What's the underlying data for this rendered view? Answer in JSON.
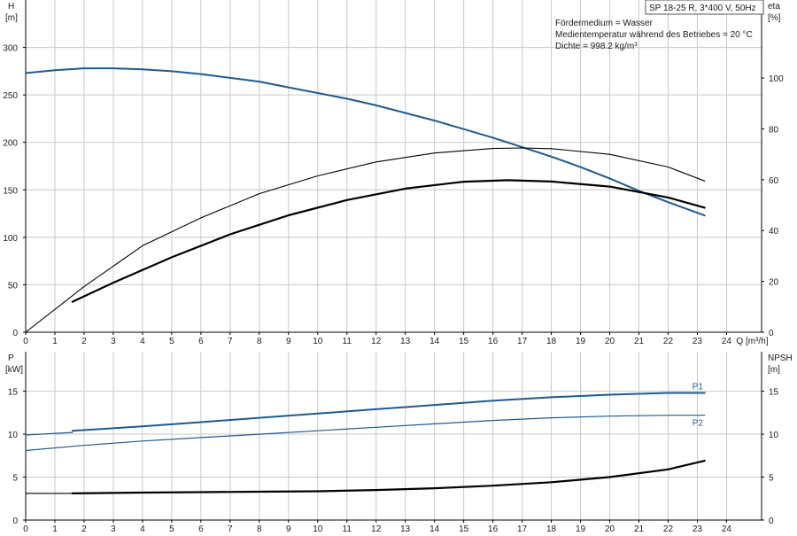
{
  "pump_title": "SP 18-25 R, 3*400 V, 50Hz",
  "medium_info": [
    "Fördermedium = Wasser",
    "Medientemperatur während des Betriebes = 20 °C",
    "Dichte = 998.2 kg/m³"
  ],
  "colors": {
    "series_blue": "#1f5a8f",
    "series_black": "#000000",
    "grid": "#c8c8c8"
  },
  "chart_data": [
    {
      "type": "line",
      "xlabel": "Q [m³/h]",
      "x_ticks": [
        0,
        1,
        2,
        3,
        4,
        5,
        6,
        7,
        8,
        9,
        10,
        11,
        12,
        13,
        14,
        15,
        16,
        17,
        18,
        19,
        20,
        21,
        22,
        23,
        24
      ],
      "xlim": [
        0,
        25.2
      ],
      "left_axis": {
        "name": "H",
        "unit": "[m]",
        "ylim": [
          0,
          350
        ],
        "ticks": [
          0,
          50,
          100,
          150,
          200,
          250,
          300
        ]
      },
      "right_axis": {
        "name": "eta",
        "unit": "[%]",
        "ylim": [
          0,
          130.7
        ],
        "ticks": [
          0,
          20,
          40,
          60,
          80,
          100
        ]
      },
      "grid": true,
      "series": [
        {
          "axis": "left",
          "style": "blue",
          "points": [
            [
              0,
              273
            ],
            [
              1,
              276
            ],
            [
              2,
              278
            ],
            [
              3,
              278
            ],
            [
              4,
              277
            ],
            [
              5,
              275
            ],
            [
              6,
              272
            ],
            [
              7,
              268
            ],
            [
              8,
              264
            ],
            [
              9,
              258
            ],
            [
              10,
              252
            ],
            [
              11,
              246
            ],
            [
              12,
              239
            ],
            [
              13,
              231
            ],
            [
              14,
              223
            ],
            [
              15,
              214
            ],
            [
              16,
              205
            ],
            [
              17,
              195
            ],
            [
              18,
              185
            ],
            [
              19,
              174
            ],
            [
              20,
              162
            ],
            [
              21,
              149
            ],
            [
              22,
              137
            ],
            [
              23.25,
              123
            ]
          ]
        },
        {
          "axis": "right",
          "style": "thin",
          "points": [
            [
              0,
              0
            ],
            [
              2,
              18
            ],
            [
              4,
              34
            ],
            [
              6,
              45
            ],
            [
              8,
              54.5
            ],
            [
              10,
              61.5
            ],
            [
              12,
              67
            ],
            [
              14,
              70.5
            ],
            [
              16,
              72.3
            ],
            [
              17,
              72.5
            ],
            [
              18,
              72.2
            ],
            [
              20,
              70
            ],
            [
              22,
              65
            ],
            [
              23.25,
              59.5
            ]
          ]
        },
        {
          "axis": "right",
          "style": "thick",
          "points": [
            [
              1.6,
              12
            ],
            [
              3,
              19.5
            ],
            [
              5,
              29.5
            ],
            [
              7,
              38.5
            ],
            [
              9,
              46
            ],
            [
              11,
              52
            ],
            [
              13,
              56.5
            ],
            [
              15,
              59.2
            ],
            [
              16.5,
              59.8
            ],
            [
              18,
              59.3
            ],
            [
              20,
              57.3
            ],
            [
              22,
              53
            ],
            [
              23.25,
              49
            ]
          ]
        }
      ]
    },
    {
      "type": "line",
      "x_ticks": [
        0,
        1,
        2,
        3,
        4,
        5,
        6,
        7,
        8,
        9,
        10,
        11,
        12,
        13,
        14,
        15,
        16,
        17,
        18,
        19,
        20,
        21,
        22,
        23,
        24
      ],
      "xlim": [
        0,
        25.2
      ],
      "left_axis": {
        "name": "P",
        "unit": "[kW]",
        "ylim": [
          0,
          19.6
        ],
        "ticks": [
          0,
          5,
          10,
          15
        ]
      },
      "right_axis": {
        "name": "NPSH",
        "unit": "[m]",
        "ylim": [
          0,
          19.6
        ],
        "ticks": [
          0,
          5,
          10,
          15
        ]
      },
      "grid": true,
      "series": [
        {
          "name": "P1",
          "axis": "left",
          "style": "blue",
          "points": [
            [
              1.6,
              10.4
            ],
            [
              4,
              10.9
            ],
            [
              6,
              11.4
            ],
            [
              8,
              11.9
            ],
            [
              10,
              12.4
            ],
            [
              12,
              12.9
            ],
            [
              14,
              13.4
            ],
            [
              16,
              13.9
            ],
            [
              18,
              14.3
            ],
            [
              20,
              14.6
            ],
            [
              22,
              14.8
            ],
            [
              23.25,
              14.8
            ]
          ]
        },
        {
          "name": "P2",
          "axis": "left",
          "style": "blue-thin",
          "points": [
            [
              0,
              8.1
            ],
            [
              2,
              8.7
            ],
            [
              4,
              9.2
            ],
            [
              6,
              9.6
            ],
            [
              8,
              10.0
            ],
            [
              10,
              10.4
            ],
            [
              12,
              10.8
            ],
            [
              14,
              11.2
            ],
            [
              16,
              11.6
            ],
            [
              18,
              11.9
            ],
            [
              20,
              12.1
            ],
            [
              22,
              12.2
            ],
            [
              23.25,
              12.2
            ]
          ]
        },
        {
          "axis": "right",
          "style": "blue-thin",
          "points": [
            [
              0,
              9.9
            ],
            [
              1.6,
              10.2
            ]
          ]
        },
        {
          "axis": "right",
          "style": "thin",
          "points": [
            [
              0,
              3.1
            ],
            [
              1.6,
              3.1
            ]
          ]
        },
        {
          "axis": "right",
          "style": "thick",
          "points": [
            [
              1.6,
              3.1
            ],
            [
              4,
              3.2
            ],
            [
              6,
              3.25
            ],
            [
              8,
              3.3
            ],
            [
              10,
              3.35
            ],
            [
              12,
              3.5
            ],
            [
              14,
              3.7
            ],
            [
              16,
              4.0
            ],
            [
              18,
              4.4
            ],
            [
              20,
              5.0
            ],
            [
              22,
              5.9
            ],
            [
              23.25,
              6.9
            ]
          ]
        }
      ]
    }
  ]
}
